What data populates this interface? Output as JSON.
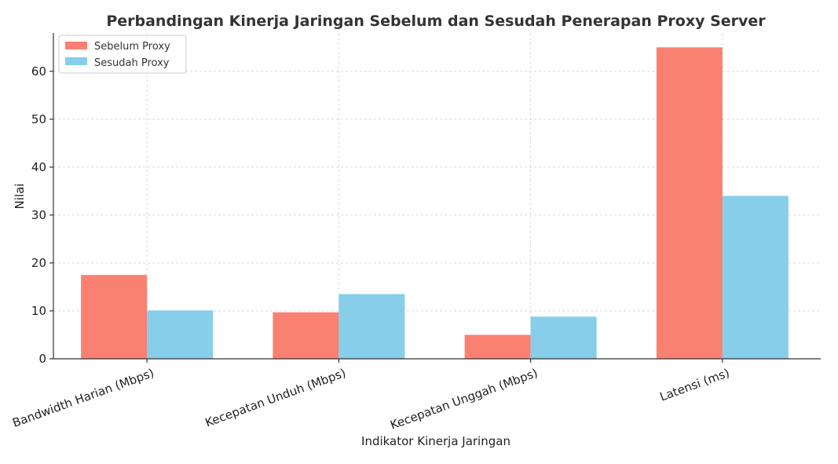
{
  "chart_data": {
    "type": "bar",
    "title": "Perbandingan Kinerja Jaringan Sebelum dan Sesudah Penerapan Proxy Server",
    "xlabel": "Indikator Kinerja Jaringan",
    "ylabel": "Nilai",
    "categories": [
      "Bandwidth Harian (Mbps)",
      "Kecepatan Unduh (Mbps)",
      "Kecepatan Unggah (Mbps)",
      "Latensi (ms)"
    ],
    "series": [
      {
        "name": "Sebelum Proxy",
        "values": [
          17.5,
          9.7,
          5.0,
          65.0
        ],
        "color": "#FA8072"
      },
      {
        "name": "Sesudah Proxy",
        "values": [
          10.1,
          13.5,
          8.8,
          34.0
        ],
        "color": "#87CEEB"
      }
    ],
    "yticks": [
      0,
      10,
      20,
      30,
      40,
      50,
      60
    ],
    "ylim": [
      0,
      68
    ],
    "grid": true,
    "legend_position": "top-left"
  }
}
